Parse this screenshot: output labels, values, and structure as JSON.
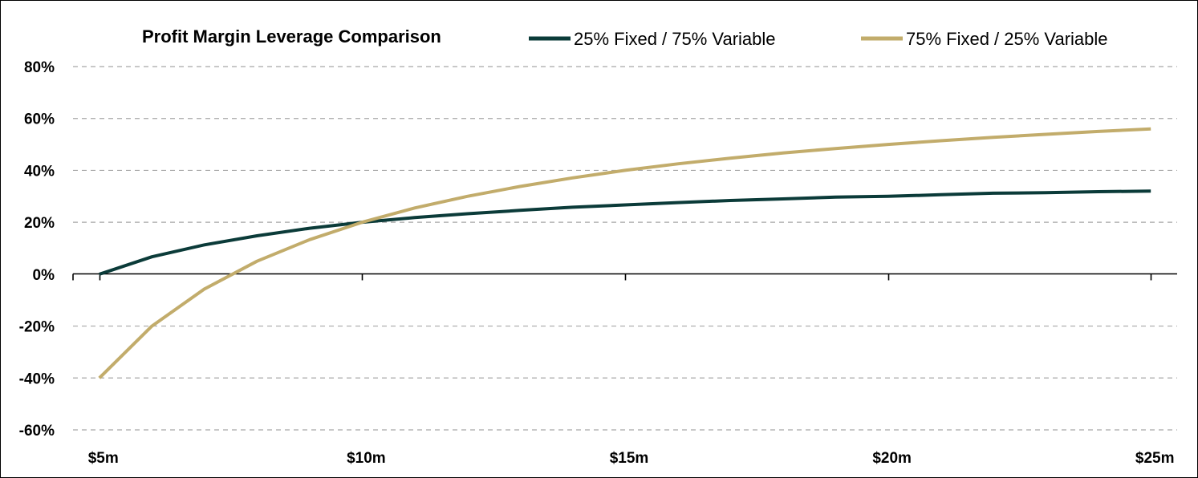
{
  "chart_data": {
    "type": "line",
    "title": "Profit Margin Leverage Comparison",
    "xlabel": "",
    "ylabel": "",
    "x_values": [
      5,
      6,
      7,
      8,
      9,
      10,
      11,
      12,
      13,
      14,
      15,
      16,
      17,
      18,
      19,
      20,
      21,
      22,
      23,
      24,
      25
    ],
    "x_ticks": [
      {
        "value": 5,
        "label": "$5m"
      },
      {
        "value": 10,
        "label": "$10m"
      },
      {
        "value": 15,
        "label": "$15m"
      },
      {
        "value": 20,
        "label": "$20m"
      },
      {
        "value": 25,
        "label": "$25m"
      }
    ],
    "y_ticks": [
      {
        "value": 80,
        "label": "80%"
      },
      {
        "value": 60,
        "label": "60%"
      },
      {
        "value": 40,
        "label": "40%"
      },
      {
        "value": 20,
        "label": "20%"
      },
      {
        "value": 0,
        "label": "0%"
      },
      {
        "value": -20,
        "label": "-20%"
      },
      {
        "value": -40,
        "label": "-40%"
      },
      {
        "value": -60,
        "label": "-60%"
      }
    ],
    "xlim": [
      4.5,
      25.5
    ],
    "ylim": [
      -60,
      80
    ],
    "grid": "horizontal-dashed",
    "legend_position": "top",
    "series": [
      {
        "name": "25% Fixed / 75% Variable",
        "color": "#0b3b39",
        "values": [
          0,
          6.7,
          11.3,
          14.8,
          17.7,
          20.0,
          21.8,
          23.3,
          24.6,
          25.8,
          26.7,
          27.6,
          28.4,
          29.0,
          29.7,
          30.0,
          30.6,
          31.2,
          31.4,
          31.8,
          32.0
        ]
      },
      {
        "name": "75% Fixed / 25% Variable",
        "color": "#c2ac6b",
        "values": [
          -40,
          -20,
          -5.7,
          5,
          13.3,
          20.0,
          25.5,
          30.0,
          33.8,
          37.1,
          40.0,
          42.5,
          44.7,
          46.7,
          48.4,
          50.0,
          51.4,
          52.7,
          53.9,
          55.0,
          56.0
        ]
      }
    ]
  }
}
